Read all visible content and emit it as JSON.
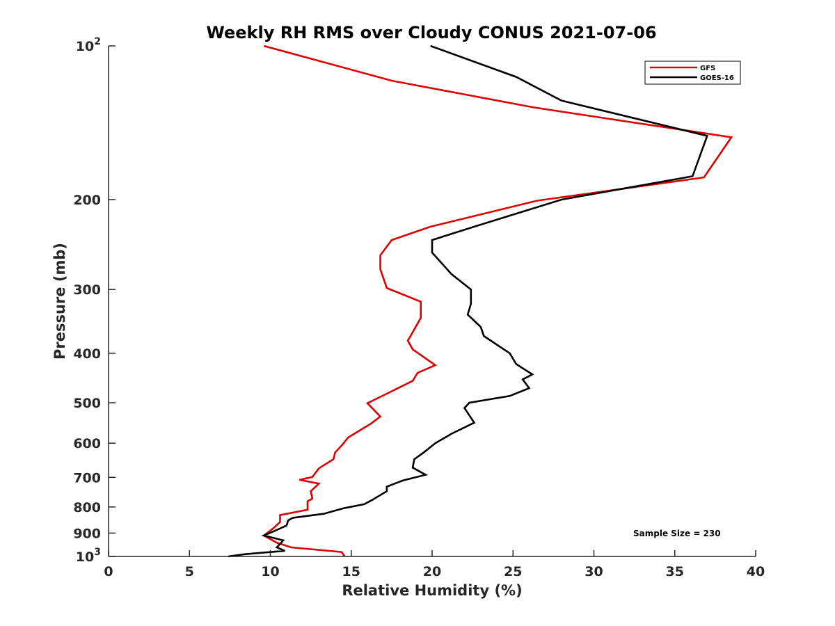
{
  "chart_data": {
    "type": "line",
    "title": "Weekly RH RMS over Cloudy CONUS 2021-07-06",
    "xlabel": "Relative Humidity (%)",
    "ylabel": "Pressure (mb)",
    "xlim": [
      0,
      40
    ],
    "ylim": [
      100,
      1000
    ],
    "y_scale": "log",
    "y_reversed": true,
    "grid": false,
    "legend_position": "top-right",
    "x_ticks": [
      "0",
      "5",
      "10",
      "15",
      "20",
      "25",
      "30",
      "35",
      "40"
    ],
    "y_ticks": [
      {
        "value": 100,
        "base": "10",
        "exp": "2"
      },
      {
        "value": 200,
        "label": "200"
      },
      {
        "value": 300,
        "label": "300"
      },
      {
        "value": 400,
        "label": "400"
      },
      {
        "value": 500,
        "label": "500"
      },
      {
        "value": 600,
        "label": "600"
      },
      {
        "value": 700,
        "label": "700"
      },
      {
        "value": 800,
        "label": "800"
      },
      {
        "value": 900,
        "label": "900"
      },
      {
        "value": 1000,
        "base": "10",
        "exp": "3"
      }
    ],
    "series": [
      {
        "name": "GFS",
        "color": "#dd0000",
        "points": [
          [
            9.6,
            100
          ],
          [
            17.5,
            117
          ],
          [
            26.3,
            132
          ],
          [
            38.5,
            151
          ],
          [
            36.8,
            181
          ],
          [
            26.5,
            201
          ],
          [
            19.9,
            226
          ],
          [
            17.5,
            240
          ],
          [
            16.8,
            257
          ],
          [
            16.8,
            274
          ],
          [
            17.2,
            298
          ],
          [
            19.3,
            317
          ],
          [
            19.3,
            341
          ],
          [
            18.5,
            378
          ],
          [
            18.8,
            393
          ],
          [
            20.2,
            422
          ],
          [
            19.1,
            437
          ],
          [
            18.8,
            453
          ],
          [
            17.2,
            480
          ],
          [
            16.0,
            501
          ],
          [
            16.8,
            532
          ],
          [
            16.2,
            550
          ],
          [
            14.8,
            585
          ],
          [
            14.5,
            602
          ],
          [
            14.0,
            626
          ],
          [
            13.9,
            645
          ],
          [
            13.0,
            672
          ],
          [
            12.6,
            699
          ],
          [
            11.8,
            708
          ],
          [
            13.0,
            720
          ],
          [
            12.5,
            745
          ],
          [
            12.6,
            770
          ],
          [
            12.3,
            780
          ],
          [
            12.3,
            810
          ],
          [
            10.6,
            830
          ],
          [
            10.6,
            856
          ],
          [
            10.2,
            880
          ],
          [
            9.6,
            910
          ],
          [
            10.4,
            940
          ],
          [
            11.3,
            960
          ],
          [
            14.4,
            980
          ],
          [
            14.6,
            1000
          ]
        ]
      },
      {
        "name": "GOES-16",
        "color": "#000000",
        "points": [
          [
            19.9,
            100
          ],
          [
            25.2,
            115
          ],
          [
            28.0,
            128
          ],
          [
            37.0,
            150
          ],
          [
            36.1,
            180
          ],
          [
            28.0,
            200
          ],
          [
            22.6,
            226
          ],
          [
            20.0,
            240
          ],
          [
            20.0,
            254
          ],
          [
            21.2,
            280
          ],
          [
            22.4,
            300
          ],
          [
            22.4,
            320
          ],
          [
            22.2,
            336
          ],
          [
            23.0,
            355
          ],
          [
            23.2,
            370
          ],
          [
            24.8,
            400
          ],
          [
            25.2,
            420
          ],
          [
            26.2,
            440
          ],
          [
            25.6,
            450
          ],
          [
            26.0,
            468
          ],
          [
            24.8,
            485
          ],
          [
            22.3,
            500
          ],
          [
            22.0,
            512
          ],
          [
            22.6,
            547
          ],
          [
            21.2,
            575
          ],
          [
            20.2,
            600
          ],
          [
            19.5,
            625
          ],
          [
            18.9,
            645
          ],
          [
            18.8,
            670
          ],
          [
            19.6,
            692
          ],
          [
            18.2,
            710
          ],
          [
            17.2,
            730
          ],
          [
            17.2,
            745
          ],
          [
            16.3,
            775
          ],
          [
            15.8,
            790
          ],
          [
            14.5,
            805
          ],
          [
            13.3,
            825
          ],
          [
            11.4,
            840
          ],
          [
            11.1,
            850
          ],
          [
            11.0,
            870
          ],
          [
            10.3,
            890
          ],
          [
            9.6,
            910
          ],
          [
            10.8,
            930
          ],
          [
            10.4,
            960
          ],
          [
            10.9,
            975
          ],
          [
            8.4,
            990
          ],
          [
            7.4,
            1000
          ]
        ]
      }
    ],
    "annotation": "Sample Size = 230"
  }
}
